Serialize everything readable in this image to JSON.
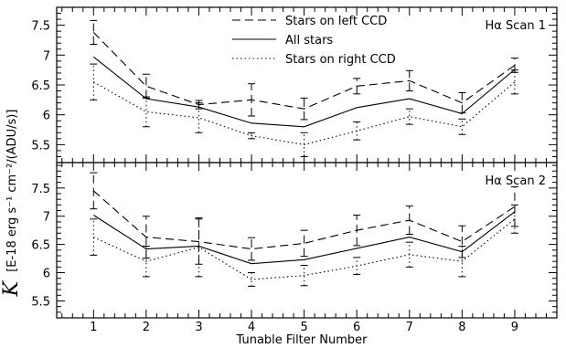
{
  "chart_data": [
    {
      "type": "line",
      "title": "Hα Scan 1",
      "categories": [
        1,
        2,
        3,
        4,
        5,
        6,
        7,
        8,
        9
      ],
      "ylim": [
        5.2,
        7.8
      ],
      "yticks": [
        5.5,
        6,
        6.5,
        7,
        7.5
      ],
      "ytick_labels": [
        "5.5",
        "6",
        "6.5",
        "7",
        "7.5"
      ],
      "series": [
        {
          "name": "Stars on left CCD",
          "style": "dashed",
          "values": [
            7.38,
            6.48,
            6.17,
            6.25,
            6.1,
            6.48,
            6.57,
            6.2,
            6.83
          ],
          "err": [
            0.2,
            0.2,
            0.07,
            0.27,
            0.18,
            0.13,
            0.17,
            0.17,
            0.12
          ]
        },
        {
          "name": "All stars",
          "style": "solid",
          "values": [
            6.97,
            6.27,
            6.13,
            5.86,
            5.8,
            6.12,
            6.27,
            6.02,
            6.76
          ]
        },
        {
          "name": "Stars on right CCD",
          "style": "dotted",
          "values": [
            6.55,
            6.05,
            5.95,
            5.65,
            5.5,
            5.73,
            5.97,
            5.8,
            6.55
          ],
          "err": [
            0.3,
            0.25,
            0.25,
            0.05,
            0.2,
            0.15,
            0.13,
            0.13,
            0.2
          ]
        }
      ]
    },
    {
      "type": "line",
      "title": "Hα Scan 2",
      "categories": [
        1,
        2,
        3,
        4,
        5,
        6,
        7,
        8,
        9
      ],
      "ylim": [
        5.2,
        7.95
      ],
      "yticks": [
        5.5,
        6,
        6.5,
        7,
        7.5
      ],
      "ytick_labels": [
        "5.5",
        "6",
        "6.5",
        "7",
        "7.5"
      ],
      "series": [
        {
          "name": "Stars on left CCD",
          "style": "dashed",
          "values": [
            7.45,
            6.63,
            6.55,
            6.42,
            6.52,
            6.75,
            6.93,
            6.55,
            7.17
          ],
          "err": [
            0.32,
            0.37,
            0.4,
            0.2,
            0.23,
            0.27,
            0.25,
            0.28,
            0.35
          ]
        },
        {
          "name": "All stars",
          "style": "solid",
          "values": [
            7.02,
            6.42,
            6.47,
            6.16,
            6.23,
            6.43,
            6.63,
            6.37,
            7.08
          ]
        },
        {
          "name": "Stars on right CCD",
          "style": "dotted",
          "values": [
            6.63,
            6.2,
            6.45,
            5.88,
            5.95,
            6.12,
            6.32,
            6.2,
            6.95
          ],
          "err": [
            0.32,
            0.27,
            0.52,
            0.12,
            0.18,
            0.15,
            0.22,
            0.27,
            0.25
          ]
        }
      ]
    }
  ],
  "xlabel": "Tunable Filter Number",
  "xlim": [
    0.3,
    9.8
  ],
  "xtick_labels": [
    "1",
    "2",
    "3",
    "4",
    "5",
    "6",
    "7",
    "8",
    "9"
  ],
  "ylabel": {
    "symbol": "K",
    "units": "[E-18 erg s⁻¹ cm⁻²/(ADU/s)]"
  },
  "legend": {
    "position": "top-right",
    "entries": [
      "Stars on left CCD",
      "All stars",
      "Stars on right CCD"
    ]
  },
  "colors": {
    "line": "#000000",
    "background": "#ffffff"
  }
}
